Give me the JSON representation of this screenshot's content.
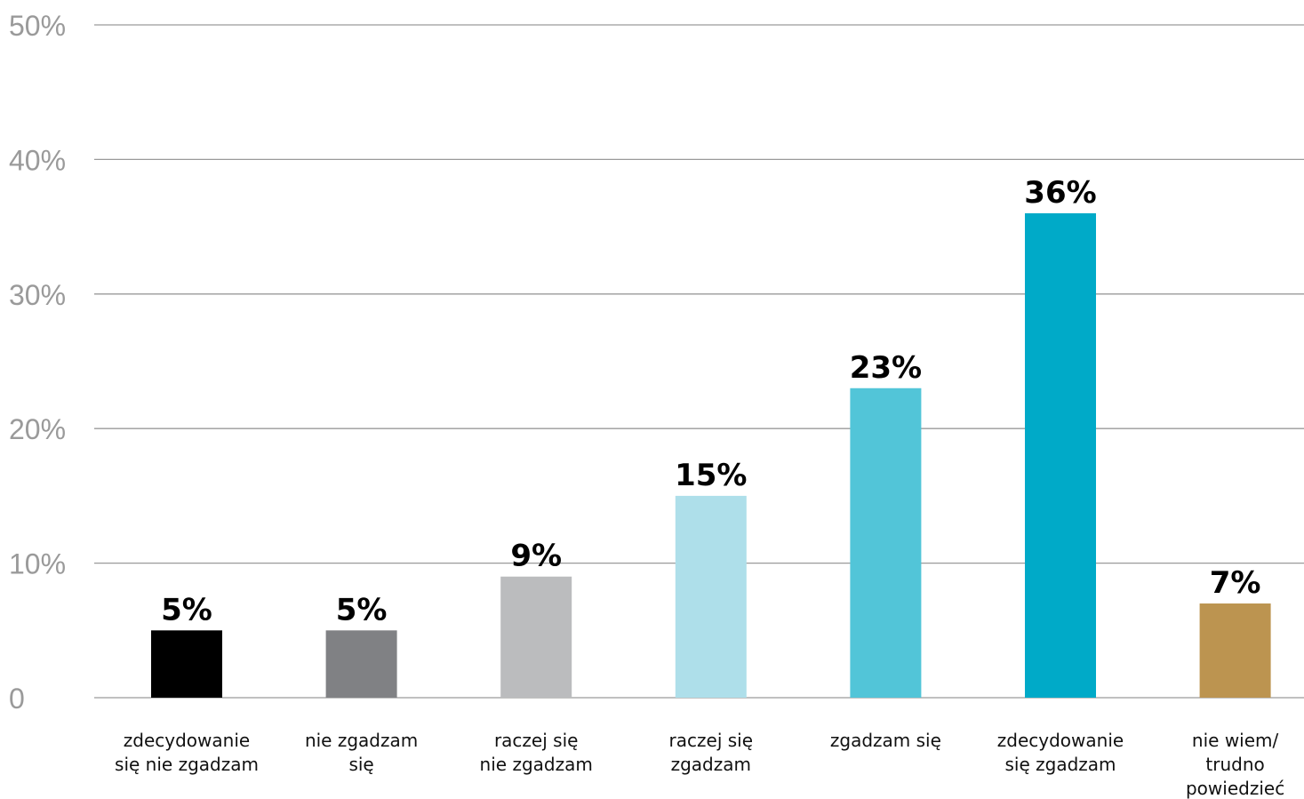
{
  "chart_data": {
    "type": "bar",
    "categories": [
      [
        "zdecydowanie",
        "się nie zgadzam"
      ],
      [
        "nie zgadzam",
        "się"
      ],
      [
        "raczej się",
        "nie zgadzam"
      ],
      [
        "raczej się",
        "zgadzam"
      ],
      [
        "zgadzam się"
      ],
      [
        "zdecydowanie",
        "się zgadzam"
      ],
      [
        "nie wiem/",
        "trudno",
        "powiedzieć"
      ]
    ],
    "values": [
      5,
      5,
      9,
      15,
      23,
      36,
      7
    ],
    "value_labels": [
      "5%",
      "5%",
      "9%",
      "15%",
      "23%",
      "36%",
      "7%"
    ],
    "colors": [
      "#000000",
      "#808184",
      "#bbbcbe",
      "#aedfea",
      "#52c5d8",
      "#00aac8",
      "#bc9450"
    ],
    "ylim": [
      0,
      50
    ],
    "yticks": [
      {
        "value": 0,
        "label": "0"
      },
      {
        "value": 10,
        "label": "10%"
      },
      {
        "value": 20,
        "label": "20%"
      },
      {
        "value": 30,
        "label": "30%"
      },
      {
        "value": 40,
        "label": "40%"
      },
      {
        "value": 50,
        "label": "50%"
      }
    ],
    "grid": true,
    "legend": "none"
  }
}
